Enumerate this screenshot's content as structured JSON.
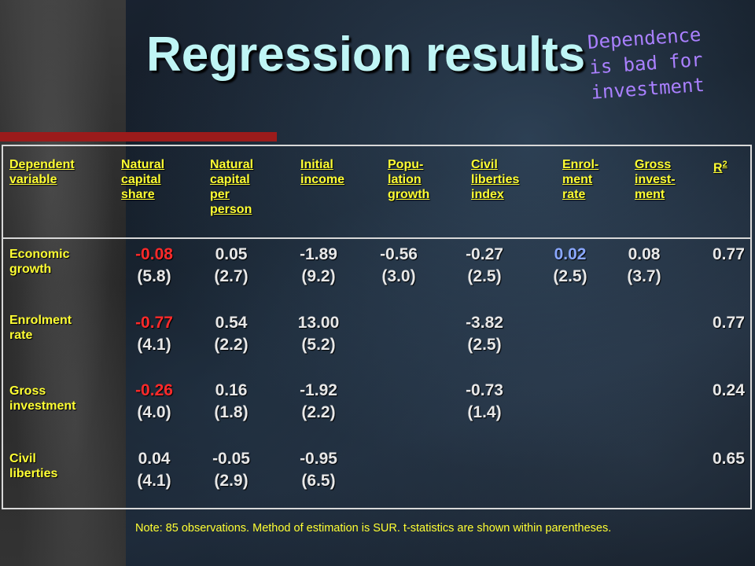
{
  "title": "Regression results",
  "callout": [
    "Dependence",
    "is bad for",
    "investment"
  ],
  "headers": {
    "dependent": [
      "Dependent",
      "variable"
    ],
    "cols": [
      [
        "Natural",
        "capital",
        "share"
      ],
      [
        "Natural",
        "capital",
        "per",
        "person"
      ],
      [
        "Initial",
        "income"
      ],
      [
        "Popu-",
        "lation",
        "growth"
      ],
      [
        "Civil",
        "liberties",
        "index"
      ],
      [
        "Enrol-",
        "ment",
        "rate"
      ],
      [
        "Gross",
        "invest-",
        "ment"
      ]
    ],
    "r2_base": "R",
    "r2_sup": "2"
  },
  "rows": [
    {
      "label": [
        "Economic",
        "growth"
      ],
      "cells": [
        {
          "value": "-0.08",
          "tstat": "(5.8)",
          "color": "neg"
        },
        {
          "value": "0.05",
          "tstat": "(2.7)",
          "color": "white"
        },
        {
          "value": "-1.89",
          "tstat": "(9.2)",
          "color": "white"
        },
        {
          "value": "-0.56",
          "tstat": "(3.0)",
          "color": "white"
        },
        {
          "value": "-0.27",
          "tstat": "(2.5)",
          "color": "white"
        },
        {
          "value": "0.02",
          "tstat": "(2.5)",
          "color": "pos"
        },
        {
          "value": "0.08",
          "tstat": "(3.7)",
          "color": "white"
        }
      ],
      "r2": "0.77"
    },
    {
      "label": [
        "Enrolment",
        "rate"
      ],
      "cells": [
        {
          "value": "-0.77",
          "tstat": "(4.1)",
          "color": "neg"
        },
        {
          "value": "0.54",
          "tstat": "(2.2)",
          "color": "white"
        },
        {
          "value": "13.00",
          "tstat": "(5.2)",
          "color": "white"
        },
        null,
        {
          "value": "-3.82",
          "tstat": "(2.5)",
          "color": "white"
        },
        null,
        null
      ],
      "r2": "0.77"
    },
    {
      "label": [
        "Gross",
        "investment"
      ],
      "cells": [
        {
          "value": "-0.26",
          "tstat": "(4.0)",
          "color": "neg"
        },
        {
          "value": "0.16",
          "tstat": "(1.8)",
          "color": "white"
        },
        {
          "value": "-1.92",
          "tstat": "(2.2)",
          "color": "white"
        },
        null,
        {
          "value": "-0.73",
          "tstat": "(1.4)",
          "color": "white"
        },
        null,
        null
      ],
      "r2": "0.24"
    },
    {
      "label": [
        "Civil",
        "liberties"
      ],
      "cells": [
        {
          "value": "0.04",
          "tstat": "(4.1)",
          "color": "white"
        },
        {
          "value": "-0.05",
          "tstat": "(2.9)",
          "color": "white"
        },
        {
          "value": "-0.95",
          "tstat": "(6.5)",
          "color": "white"
        },
        null,
        null,
        null,
        null
      ],
      "r2": "0.65"
    }
  ],
  "note": "Note: 85 observations. Method of estimation is SUR. t-statistics are shown within parentheses."
}
